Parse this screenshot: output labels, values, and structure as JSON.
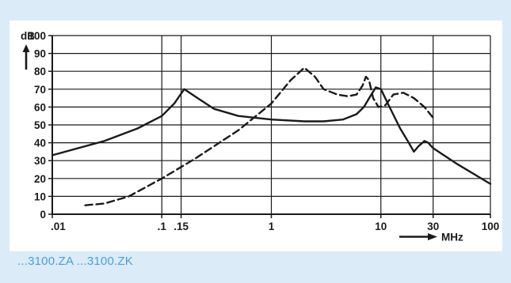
{
  "chart_data": {
    "type": "line",
    "ylabel": "dB",
    "xlabel": "MHz",
    "x_scale": "log",
    "xlim": [
      0.01,
      100
    ],
    "ylim": [
      0,
      100
    ],
    "x_ticks": [
      0.01,
      0.1,
      0.15,
      1,
      10,
      30,
      100
    ],
    "x_tick_labels": [
      ".01",
      ".1",
      ".15",
      "1",
      "10",
      "30",
      "100"
    ],
    "y_ticks": [
      0,
      10,
      20,
      30,
      40,
      50,
      60,
      70,
      80,
      90,
      100
    ],
    "y_tick_labels": [
      "0",
      "10",
      "20",
      "30",
      "40",
      "50",
      "60",
      "70",
      "80",
      "90",
      "100"
    ],
    "grid": true,
    "series": [
      {
        "style": "solid",
        "color": "#1a1a1a",
        "x": [
          0.01,
          0.03,
          0.06,
          0.1,
          0.13,
          0.16,
          0.2,
          0.3,
          0.5,
          1,
          2,
          3,
          4.5,
          6,
          7,
          8,
          9,
          10,
          12,
          15,
          18,
          20,
          22,
          25,
          27,
          30,
          50,
          100
        ],
        "y": [
          33,
          41,
          48,
          55,
          62,
          70,
          66,
          59,
          55,
          53,
          52,
          52,
          53,
          56,
          60,
          66,
          71,
          70,
          60,
          48,
          40,
          35,
          38,
          41,
          40,
          37,
          28,
          17
        ]
      },
      {
        "style": "dashed",
        "color": "#1a1a1a",
        "x": [
          0.02,
          0.03,
          0.05,
          0.1,
          0.2,
          0.5,
          1,
          1.5,
          2,
          2.5,
          3,
          4,
          5,
          6,
          6.8,
          7.3,
          7.8,
          8.5,
          9.5,
          11,
          13,
          16,
          20,
          25,
          30
        ],
        "y": [
          5,
          6,
          10,
          20,
          31,
          47,
          62,
          75,
          82,
          77,
          70,
          67,
          66,
          67,
          72,
          77,
          75,
          65,
          60,
          61,
          67,
          68,
          65,
          60,
          54
        ]
      }
    ]
  },
  "caption": "...3100.ZA ...3100.ZK",
  "colors": {
    "background_panel": "#dcebf8",
    "chart_background": "#ffffff",
    "caption": "#4a9fd8",
    "ink": "#1a1a1a"
  }
}
